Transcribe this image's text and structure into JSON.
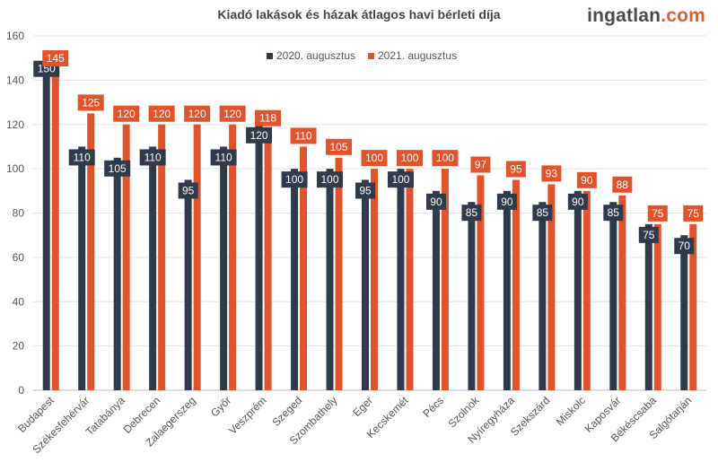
{
  "chart_data": {
    "type": "bar",
    "title": "Kiadó lakások és házak átlagos havi bérleti díja",
    "xlabel": "",
    "ylabel": "",
    "ylim": [
      0,
      160
    ],
    "yticks": [
      0,
      20,
      40,
      60,
      80,
      100,
      120,
      140,
      160
    ],
    "grid": true,
    "legend_position": "top",
    "categories": [
      "Budapest",
      "Székesfehérvár",
      "Tatabánya",
      "Debrecen",
      "Zalaegerszeg",
      "Győr",
      "Veszprém",
      "Szeged",
      "Szombathely",
      "Eger",
      "Kecskemét",
      "Pécs",
      "Szolnok",
      "Nyíregyháza",
      "Szekszárd",
      "Miskolc",
      "Kaposvár",
      "Békéscsaba",
      "Salgótarján"
    ],
    "series": [
      {
        "name": "2020. augusztus",
        "color": "#2f3a4a",
        "values": [
          150,
          110,
          105,
          110,
          95,
          110,
          120,
          100,
          100,
          95,
          100,
          90,
          85,
          90,
          85,
          90,
          85,
          75,
          70
        ]
      },
      {
        "name": "2021. augusztus",
        "color": "#e0532b",
        "values": [
          145,
          125,
          120,
          120,
          120,
          120,
          118,
          110,
          105,
          100,
          100,
          100,
          97,
          95,
          93,
          90,
          88,
          75,
          75
        ]
      }
    ]
  },
  "logo": {
    "brand": "ingatlan",
    "tld": ".com"
  }
}
